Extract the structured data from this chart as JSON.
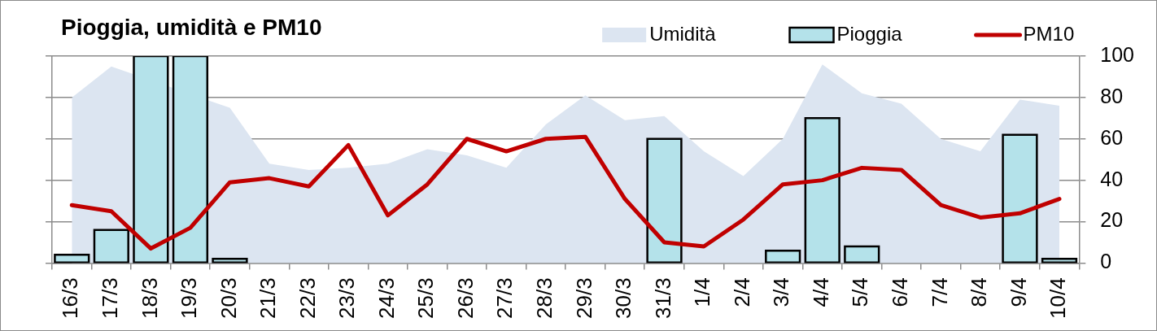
{
  "chart_data": {
    "type": "bar",
    "title": "Pioggia, umidità e PM10",
    "categories": [
      "16/3",
      "17/3",
      "18/3",
      "19/3",
      "20/3",
      "21/3",
      "22/3",
      "23/3",
      "24/3",
      "25/3",
      "26/3",
      "27/3",
      "28/3",
      "29/3",
      "30/3",
      "31/3",
      "1/4",
      "2/4",
      "3/4",
      "4/4",
      "5/4",
      "6/4",
      "7/4",
      "8/4",
      "9/4",
      "10/4"
    ],
    "series": [
      {
        "name": "Umidità",
        "type": "area",
        "color": "#dce5f1",
        "values": [
          80,
          95,
          null,
          null,
          75,
          48,
          45,
          46,
          48,
          55,
          52,
          46,
          67,
          81,
          69,
          71,
          54,
          42,
          60,
          96,
          82,
          77,
          60,
          54,
          79,
          76
        ]
      },
      {
        "name": "Pioggia",
        "color": "#b4e2ea",
        "values": [
          4,
          16,
          100,
          100,
          2,
          null,
          null,
          null,
          null,
          null,
          null,
          null,
          null,
          null,
          null,
          60,
          null,
          null,
          6,
          70,
          8,
          null,
          null,
          null,
          62,
          2
        ]
      },
      {
        "name": "PM10",
        "type": "line",
        "color": "#c00000",
        "values": [
          28,
          25,
          7,
          17,
          39,
          41,
          37,
          57,
          23,
          38,
          60,
          54,
          60,
          61,
          31,
          10,
          8,
          21,
          38,
          40,
          46,
          45,
          28,
          22,
          24,
          31
        ]
      }
    ],
    "ylim": [
      0,
      100
    ],
    "yticks": [
      0,
      20,
      40,
      60,
      80,
      100
    ],
    "grid": "y",
    "legend": "top right"
  }
}
